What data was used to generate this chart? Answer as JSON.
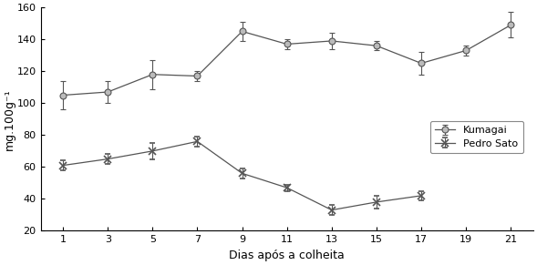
{
  "x": [
    1,
    3,
    5,
    7,
    9,
    11,
    13,
    15,
    17,
    19,
    21
  ],
  "kumagai_y": [
    105,
    107,
    118,
    117,
    145,
    137,
    139,
    136,
    125,
    133,
    149
  ],
  "kumagai_err": [
    9,
    7,
    9,
    3,
    6,
    3,
    5,
    3,
    7,
    3,
    8
  ],
  "pedro_y": [
    61,
    65,
    70,
    76,
    56,
    47,
    33,
    38,
    42,
    null,
    null
  ],
  "pedro_err": [
    3,
    3,
    5,
    3,
    3,
    2,
    3,
    4,
    3,
    null,
    null
  ],
  "ylabel": "mg.100g⁻¹",
  "xlabel": "Dias após a colheita",
  "ylim": [
    20,
    160
  ],
  "yticks": [
    20,
    40,
    60,
    80,
    100,
    120,
    140,
    160
  ],
  "xticks": [
    1,
    3,
    5,
    7,
    9,
    11,
    13,
    15,
    17,
    19,
    21
  ],
  "line_color": "#555555",
  "kumagai_marker": "o",
  "pedro_marker": "x",
  "legend_kumagai": "Kumagai",
  "legend_pedro": "Pedro Sato",
  "marker_size": 5,
  "marker_face_kumagai": "#bbbbbb",
  "marker_face_pedro": "#555555",
  "tick_fontsize": 8,
  "label_fontsize": 9,
  "legend_fontsize": 8
}
